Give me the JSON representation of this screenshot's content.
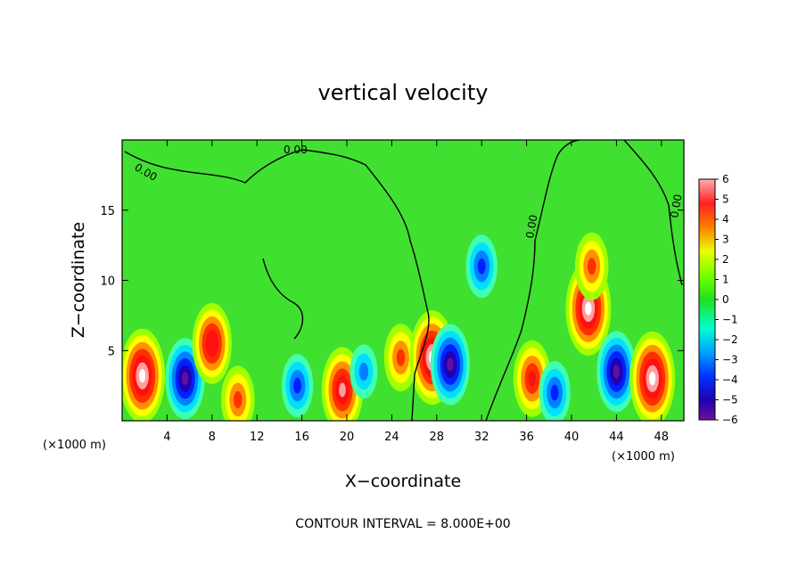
{
  "chart_data": {
    "type": "heatmap",
    "title": "vertical velocity",
    "xlabel": "X−coordinate",
    "ylabel": "Z−coordinate",
    "x_unit": "(×1000 m)",
    "x_unit_right": "(×1000 m)",
    "xlim": [
      0,
      50
    ],
    "ylim": [
      0,
      20
    ],
    "xticks": [
      4,
      8,
      12,
      16,
      20,
      24,
      28,
      32,
      36,
      40,
      44,
      48
    ],
    "yticks": [
      5,
      10,
      15
    ],
    "colorbar": {
      "min": -6,
      "max": 6,
      "ticks": [
        "6",
        "5",
        "4",
        "3",
        "2",
        "1",
        "0",
        "−1",
        "−2",
        "−3",
        "−4",
        "−5",
        "−6"
      ]
    },
    "contour_labels": [
      "0.00",
      "0.00",
      "0.00",
      "0.00"
    ],
    "footer": "CONTOUR INTERVAL = 8.000E+00",
    "features": [
      {
        "x": 1.8,
        "z": 3.2,
        "w": 7
      },
      {
        "x": 5.6,
        "z": 3.0,
        "w": -5.5
      },
      {
        "x": 8.0,
        "z": 5.5,
        "w": 5.5
      },
      {
        "x": 10.3,
        "z": 1.5,
        "w": 4
      },
      {
        "x": 15.6,
        "z": 2.5,
        "w": -3.5
      },
      {
        "x": 19.6,
        "z": 2.2,
        "w": 6
      },
      {
        "x": 21.5,
        "z": 3.5,
        "w": -2.5
      },
      {
        "x": 24.8,
        "z": 4.5,
        "w": 4
      },
      {
        "x": 27.6,
        "z": 4.5,
        "w": 7
      },
      {
        "x": 29.2,
        "z": 4.0,
        "w": -5.5
      },
      {
        "x": 32.0,
        "z": 11.0,
        "w": -3.5
      },
      {
        "x": 36.5,
        "z": 3.0,
        "w": 5
      },
      {
        "x": 38.5,
        "z": 2.0,
        "w": -3.5
      },
      {
        "x": 41.5,
        "z": 8.0,
        "w": 7
      },
      {
        "x": 41.8,
        "z": 11.0,
        "w": 4
      },
      {
        "x": 44.0,
        "z": 3.5,
        "w": -5.5
      },
      {
        "x": 47.2,
        "z": 3.0,
        "w": 7
      }
    ]
  }
}
